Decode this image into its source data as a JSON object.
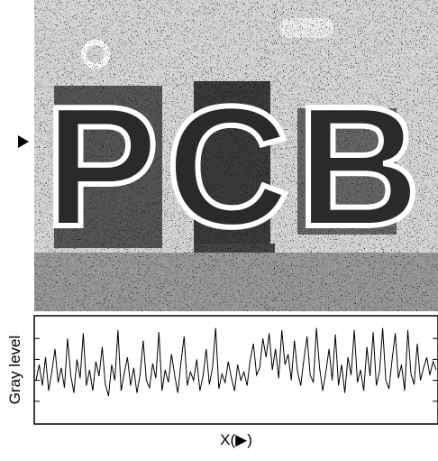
{
  "chart_data": {
    "type": "line",
    "annotation": "PCB",
    "xlabel": "X(▶)",
    "ylabel": "Gray level",
    "color": "#000000",
    "ylim": [
      0,
      100
    ],
    "yticks": [
      20,
      40,
      60,
      80
    ],
    "values": [
      40,
      55,
      35,
      62,
      30,
      48,
      70,
      38,
      52,
      33,
      80,
      45,
      28,
      60,
      42,
      85,
      35,
      50,
      30,
      58,
      44,
      72,
      36,
      25,
      55,
      40,
      88,
      30,
      47,
      62,
      35,
      52,
      28,
      45,
      78,
      40,
      33,
      56,
      42,
      86,
      30,
      50,
      38,
      65,
      45,
      28,
      57,
      82,
      35,
      48,
      40,
      60,
      30,
      44,
      70,
      36,
      52,
      90,
      32,
      46,
      38,
      58,
      42,
      30,
      55,
      40,
      48,
      35,
      60,
      75,
      45,
      52,
      80,
      62,
      85,
      50,
      70,
      42,
      88,
      55,
      65,
      40,
      78,
      48,
      35,
      60,
      82,
      45,
      38,
      90,
      52,
      30,
      48,
      70,
      40,
      84,
      35,
      55,
      28,
      62,
      45,
      88,
      38,
      50,
      30,
      72,
      44,
      86,
      35,
      48,
      90,
      40,
      32,
      60,
      85,
      42,
      55,
      30,
      88,
      46,
      36,
      75,
      40,
      52,
      62,
      45,
      58,
      50
    ]
  }
}
